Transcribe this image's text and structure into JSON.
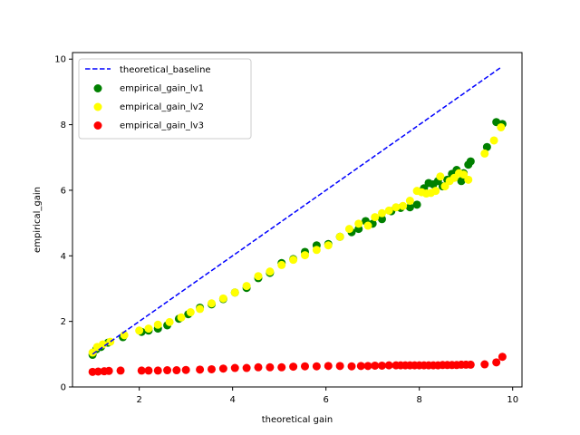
{
  "chart_data": {
    "type": "scatter",
    "xlabel": "theoretical gain",
    "ylabel": "empirical_gain",
    "xlim": [
      0.57,
      10.2
    ],
    "ylim": [
      0,
      10.2
    ],
    "xticks": [
      2,
      4,
      6,
      8,
      10
    ],
    "yticks": [
      0,
      2,
      4,
      6,
      8,
      10
    ],
    "grid": false,
    "legend": {
      "placement": "top-left",
      "entries": [
        "theoretical_baseline",
        "empirical_gain_lv1",
        "empirical_gain_lv2",
        "empirical_gain_lv3"
      ]
    },
    "lines": [
      {
        "name": "theoretical_baseline",
        "style": "dashed",
        "color": "#0000ff",
        "x": [
          1.0,
          9.75
        ],
        "y": [
          1.0,
          9.75
        ]
      }
    ],
    "series": [
      {
        "name": "empirical_gain_lv1",
        "color": "#008000",
        "x": [
          1.0,
          1.08,
          1.18,
          1.33,
          1.65,
          2.05,
          2.2,
          2.4,
          2.6,
          2.85,
          3.05,
          3.3,
          3.55,
          3.8,
          4.05,
          4.3,
          4.55,
          4.8,
          5.05,
          5.3,
          5.55,
          5.8,
          6.05,
          6.3,
          6.55,
          6.7,
          6.85,
          7.0,
          7.2,
          7.4,
          7.6,
          7.8,
          7.95,
          8.1,
          8.2,
          8.3,
          8.4,
          8.5,
          8.6,
          8.7,
          8.8,
          8.9,
          8.95,
          9.05,
          9.1,
          9.45,
          9.65,
          9.78
        ],
        "y": [
          0.98,
          1.15,
          1.22,
          1.35,
          1.52,
          1.68,
          1.72,
          1.78,
          1.88,
          2.08,
          2.22,
          2.42,
          2.52,
          2.68,
          2.88,
          3.02,
          3.32,
          3.48,
          3.78,
          3.9,
          4.12,
          4.32,
          4.36,
          4.58,
          4.72,
          4.82,
          5.06,
          4.98,
          5.12,
          5.36,
          5.46,
          5.48,
          5.56,
          6.06,
          6.22,
          6.18,
          6.28,
          6.12,
          6.32,
          6.5,
          6.62,
          6.28,
          6.52,
          6.78,
          6.88,
          7.32,
          8.08,
          8.02
        ]
      },
      {
        "name": "empirical_gain_lv2",
        "color": "#ffff00",
        "x": [
          1.0,
          1.1,
          1.22,
          1.38,
          1.68,
          2.0,
          2.2,
          2.4,
          2.65,
          2.9,
          3.1,
          3.3,
          3.55,
          3.8,
          4.05,
          4.3,
          4.55,
          4.8,
          5.05,
          5.3,
          5.55,
          5.8,
          6.05,
          6.3,
          6.5,
          6.7,
          6.9,
          7.05,
          7.2,
          7.35,
          7.5,
          7.65,
          7.8,
          7.95,
          8.05,
          8.15,
          8.25,
          8.35,
          8.45,
          8.55,
          8.65,
          8.75,
          8.85,
          8.95,
          9.05,
          9.4,
          9.6,
          9.75
        ],
        "y": [
          1.05,
          1.22,
          1.3,
          1.38,
          1.58,
          1.72,
          1.78,
          1.9,
          1.98,
          2.12,
          2.28,
          2.38,
          2.55,
          2.7,
          2.88,
          3.08,
          3.38,
          3.52,
          3.72,
          3.88,
          4.02,
          4.18,
          4.32,
          4.58,
          4.82,
          4.98,
          4.92,
          5.18,
          5.3,
          5.38,
          5.48,
          5.52,
          5.68,
          5.98,
          5.94,
          5.9,
          5.92,
          5.98,
          6.42,
          6.12,
          6.28,
          6.38,
          6.52,
          6.48,
          6.32,
          7.12,
          7.52,
          7.92
        ]
      },
      {
        "name": "empirical_gain_lv3",
        "color": "#ff0000",
        "x": [
          1.0,
          1.12,
          1.25,
          1.35,
          1.6,
          2.05,
          2.2,
          2.4,
          2.6,
          2.8,
          3.0,
          3.3,
          3.55,
          3.8,
          4.05,
          4.3,
          4.55,
          4.8,
          5.05,
          5.3,
          5.55,
          5.8,
          6.05,
          6.3,
          6.55,
          6.75,
          6.9,
          7.05,
          7.2,
          7.35,
          7.5,
          7.6,
          7.7,
          7.8,
          7.9,
          8.0,
          8.1,
          8.2,
          8.3,
          8.4,
          8.5,
          8.6,
          8.7,
          8.8,
          8.9,
          9.0,
          9.1,
          9.4,
          9.65,
          9.78
        ],
        "y": [
          0.46,
          0.47,
          0.48,
          0.49,
          0.5,
          0.5,
          0.5,
          0.5,
          0.51,
          0.51,
          0.52,
          0.53,
          0.54,
          0.56,
          0.58,
          0.58,
          0.6,
          0.6,
          0.6,
          0.62,
          0.63,
          0.63,
          0.64,
          0.64,
          0.63,
          0.64,
          0.64,
          0.65,
          0.65,
          0.66,
          0.66,
          0.66,
          0.66,
          0.66,
          0.66,
          0.66,
          0.66,
          0.66,
          0.66,
          0.66,
          0.67,
          0.67,
          0.67,
          0.67,
          0.68,
          0.68,
          0.68,
          0.69,
          0.75,
          0.92
        ]
      }
    ]
  }
}
